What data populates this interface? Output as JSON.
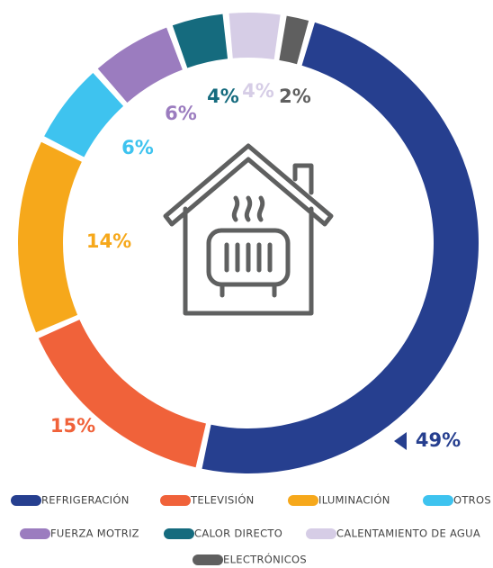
{
  "chart_data": {
    "type": "donut",
    "categories": [
      "REFRIGERACIÓN",
      "TELEVISIÓN",
      "ILUMINACIÓN",
      "OTROS",
      "FUERZA MOTRIZ",
      "CALOR DIRECTO",
      "CALENTAMIENTO DE AGUA",
      "ELECTRÓNICOS"
    ],
    "values": [
      49,
      15,
      14,
      6,
      6,
      4,
      4,
      2
    ],
    "value_labels": [
      "49%",
      "15%",
      "14%",
      "6%",
      "6%",
      "4%",
      "4%",
      "2%"
    ],
    "colors": [
      "#263f8f",
      "#f0623a",
      "#f6a81b",
      "#3ec3ef",
      "#9b7cbf",
      "#156b7e",
      "#d6cde6",
      "#5f5f5f"
    ]
  }
}
